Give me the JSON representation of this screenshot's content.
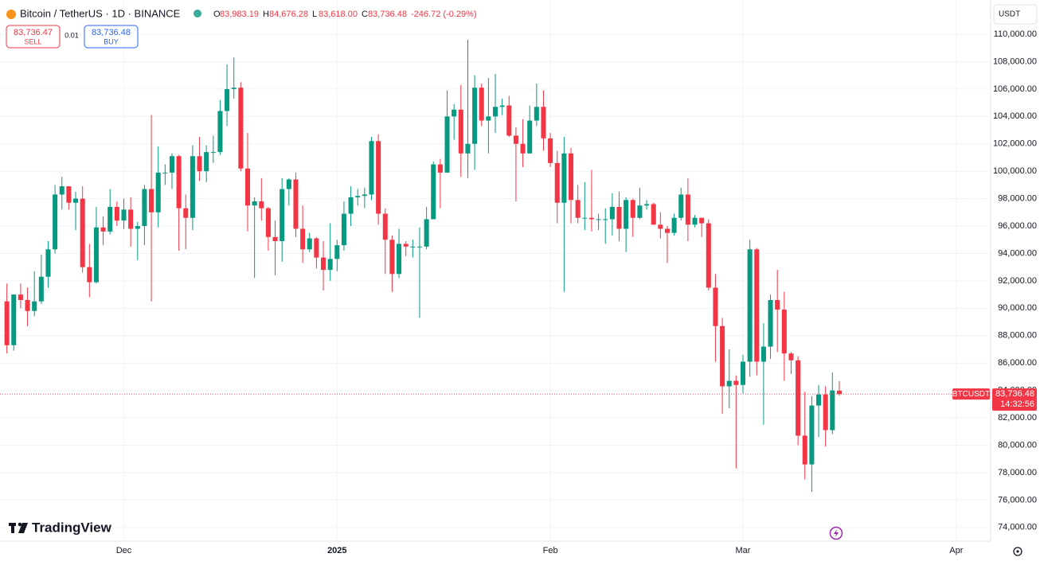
{
  "chart_data": {
    "type": "candlestick",
    "title": "Bitcoin / TetherUS · 1D · BINANCE",
    "legend": [
      {
        "label": "O",
        "value": "83,983.19"
      },
      {
        "label": "H",
        "value": "84,676.28"
      },
      {
        "label": "L",
        "value": "83,618.00"
      },
      {
        "label": "C",
        "value": "83,736.48"
      }
    ],
    "change": "-246.72 (-0.29%)",
    "sell": {
      "price": "83,736.47",
      "label": "SELL"
    },
    "spread": "0.01",
    "buy": {
      "price": "83,736.48",
      "label": "BUY"
    },
    "currency": "USDT",
    "symbol_label": "BTCUSDT",
    "last_price": {
      "value": 83736.48,
      "label": "83,736.48"
    },
    "countdown": "14:32:56",
    "brand": "TradingView",
    "up_color": "#089981",
    "down_color": "#f23645",
    "grid": true,
    "x": [
      "2024-11-14",
      "2024-11-15",
      "2024-11-16",
      "2024-11-17",
      "2024-11-18",
      "2024-11-19",
      "2024-11-20",
      "2024-11-21",
      "2024-11-22",
      "2024-11-23",
      "2024-11-24",
      "2024-11-25",
      "2024-11-26",
      "2024-11-27",
      "2024-11-28",
      "2024-11-29",
      "2024-11-30",
      "2024-12-01",
      "2024-12-02",
      "2024-12-03",
      "2024-12-04",
      "2024-12-05",
      "2024-12-06",
      "2024-12-07",
      "2024-12-08",
      "2024-12-09",
      "2024-12-10",
      "2024-12-11",
      "2024-12-12",
      "2024-12-13",
      "2024-12-14",
      "2024-12-15",
      "2024-12-16",
      "2024-12-17",
      "2024-12-18",
      "2024-12-19",
      "2024-12-20",
      "2024-12-21",
      "2024-12-22",
      "2024-12-23",
      "2024-12-24",
      "2024-12-25",
      "2024-12-26",
      "2024-12-27",
      "2024-12-28",
      "2024-12-29",
      "2024-12-30",
      "2024-12-31",
      "2025-01-01",
      "2025-01-02",
      "2025-01-03",
      "2025-01-04",
      "2025-01-05",
      "2025-01-06",
      "2025-01-07",
      "2025-01-08",
      "2025-01-09",
      "2025-01-10",
      "2025-01-11",
      "2025-01-12",
      "2025-01-13",
      "2025-01-14",
      "2025-01-15",
      "2025-01-16",
      "2025-01-17",
      "2025-01-18",
      "2025-01-19",
      "2025-01-20",
      "2025-01-21",
      "2025-01-22",
      "2025-01-23",
      "2025-01-24",
      "2025-01-25",
      "2025-01-26",
      "2025-01-27",
      "2025-01-28",
      "2025-01-29",
      "2025-01-30",
      "2025-01-31",
      "2025-02-01",
      "2025-02-02",
      "2025-02-03",
      "2025-02-04",
      "2025-02-05",
      "2025-02-06",
      "2025-02-07",
      "2025-02-08",
      "2025-02-09",
      "2025-02-10",
      "2025-02-11",
      "2025-02-12",
      "2025-02-13",
      "2025-02-14",
      "2025-02-15",
      "2025-02-16",
      "2025-02-17",
      "2025-02-18",
      "2025-02-19",
      "2025-02-20",
      "2025-02-21",
      "2025-02-22",
      "2025-02-23",
      "2025-02-24",
      "2025-02-25",
      "2025-02-26",
      "2025-02-27",
      "2025-02-28",
      "2025-03-01",
      "2025-03-02",
      "2025-03-03",
      "2025-03-04",
      "2025-03-05",
      "2025-03-06",
      "2025-03-07",
      "2025-03-08",
      "2025-03-09",
      "2025-03-10",
      "2025-03-11",
      "2025-03-12",
      "2025-03-13",
      "2025-03-14",
      "2025-03-15"
    ],
    "open": [
      90500,
      87300,
      91000,
      90600,
      89800,
      90500,
      92300,
      94300,
      98300,
      98900,
      97700,
      98000,
      93000,
      91900,
      95900,
      95600,
      97400,
      96400,
      97200,
      95800,
      96000,
      98700,
      97000,
      99900,
      99900,
      101100,
      97300,
      96600,
      101100,
      100000,
      101400,
      101400,
      104400,
      106000,
      106100,
      100200,
      97500,
      97800,
      97300,
      95200,
      94900,
      98700,
      99400,
      95800,
      94300,
      95100,
      93700,
      92800,
      93600,
      94600,
      96900,
      98100,
      98200,
      98300,
      102200,
      96900,
      95000,
      92500,
      94700,
      94500,
      94500,
      94500,
      96500,
      100500,
      99900,
      104000,
      104500,
      101300,
      102000,
      106100,
      103700,
      104000,
      104700,
      104800,
      102600,
      102000,
      101300,
      103700,
      104700,
      102400,
      100600,
      97700,
      101300,
      97900,
      96600,
      96600,
      96500,
      96500,
      96500,
      97400,
      95800,
      97900,
      96600,
      97500,
      97600,
      96100,
      95800,
      95500,
      96600,
      98300,
      96100,
      96600,
      96200,
      91500,
      88700,
      84300,
      84700,
      84400,
      86100,
      94300,
      86100,
      87200,
      90600,
      89900,
      86700,
      86200,
      80700,
      78600,
      82900,
      83700,
      81100,
      83983.19
    ],
    "high": [
      91800,
      91000,
      91800,
      91500,
      92700,
      93900,
      94900,
      99000,
      99600,
      98900,
      98500,
      98900,
      94700,
      97400,
      96700,
      98700,
      97800,
      98000,
      98100,
      96300,
      99000,
      104100,
      101800,
      100500,
      101300,
      101200,
      98300,
      101900,
      102500,
      101900,
      102600,
      105200,
      107800,
      108300,
      106500,
      102800,
      98100,
      99500,
      97400,
      96400,
      99500,
      99500,
      99900,
      97500,
      95500,
      95200,
      94900,
      96200,
      95000,
      97800,
      98900,
      98700,
      98800,
      102500,
      102700,
      97300,
      95300,
      95800,
      94900,
      95000,
      95900,
      97400,
      100700,
      100900,
      105900,
      104900,
      106300,
      109600,
      107000,
      106400,
      106800,
      107100,
      105300,
      105500,
      103200,
      103800,
      104800,
      106400,
      105900,
      102800,
      101500,
      102500,
      101700,
      99000,
      99200,
      100100,
      96900,
      97300,
      98400,
      98500,
      98100,
      98000,
      98800,
      97900,
      97700,
      97000,
      96000,
      96900,
      98800,
      99500,
      96800,
      96600,
      96500,
      92500,
      89300,
      87000,
      85100,
      86600,
      95000,
      94400,
      88900,
      91000,
      92800,
      91200,
      86800,
      86500,
      83900,
      83600,
      84400,
      84300,
      85300,
      84676.28
    ],
    "low": [
      86700,
      86900,
      90000,
      88700,
      89400,
      90300,
      91500,
      94000,
      97200,
      97200,
      95700,
      92600,
      90800,
      91800,
      94600,
      95400,
      96000,
      95800,
      94500,
      93500,
      94600,
      90500,
      95900,
      99000,
      98700,
      94200,
      94300,
      95700,
      99300,
      99200,
      100600,
      101200,
      103300,
      105300,
      100000,
      95600,
      92200,
      96400,
      94200,
      92400,
      93400,
      97500,
      95200,
      93300,
      94100,
      92900,
      91300,
      92000,
      92700,
      94200,
      96000,
      97500,
      97300,
      97900,
      96100,
      92500,
      91200,
      92200,
      93800,
      93700,
      89300,
      94300,
      96500,
      97300,
      99900,
      102300,
      99600,
      99500,
      100100,
      103300,
      101300,
      102800,
      104100,
      102500,
      97800,
      100300,
      101300,
      103300,
      101500,
      100300,
      96200,
      91200,
      96200,
      96200,
      95700,
      95600,
      95700,
      94700,
      95300,
      94900,
      94100,
      95200,
      96500,
      97200,
      96100,
      95100,
      93300,
      95300,
      96400,
      94900,
      95900,
      95200,
      91300,
      86100,
      82300,
      82700,
      78300,
      83800,
      85000,
      85100,
      81500,
      86300,
      86800,
      84700,
      85200,
      80000,
      77500,
      76600,
      80600,
      79900,
      80800,
      83618.0
    ],
    "close": [
      87300,
      91000,
      90600,
      89800,
      90500,
      92300,
      94300,
      98300,
      98900,
      97700,
      98000,
      93000,
      91900,
      95900,
      95600,
      97400,
      96400,
      97200,
      95800,
      96000,
      98700,
      97000,
      99900,
      99900,
      101100,
      97300,
      96600,
      101100,
      100000,
      101400,
      101400,
      104400,
      106000,
      106100,
      100200,
      97500,
      97800,
      97300,
      95200,
      94900,
      98700,
      99400,
      95800,
      94300,
      95100,
      93700,
      92800,
      93600,
      94600,
      96900,
      98100,
      98200,
      98300,
      102200,
      96900,
      95000,
      92500,
      94700,
      94500,
      94500,
      94500,
      96500,
      100500,
      99900,
      104000,
      104500,
      101300,
      102000,
      106100,
      103700,
      104000,
      104700,
      104800,
      102600,
      102000,
      101300,
      103700,
      104700,
      102400,
      100600,
      97700,
      101300,
      97900,
      96600,
      96600,
      96500,
      96500,
      96500,
      97400,
      95800,
      97900,
      96600,
      97500,
      97600,
      96100,
      95800,
      95500,
      96600,
      98300,
      96100,
      96600,
      96200,
      91500,
      88700,
      84300,
      84700,
      84400,
      86100,
      94300,
      86100,
      87200,
      90600,
      89900,
      86700,
      86200,
      80700,
      78600,
      82900,
      83700,
      81100,
      84000,
      83736.48
    ],
    "ylim": [
      73000,
      112500
    ],
    "yticks": [
      {
        "value": 74000,
        "label": "74,000.00"
      },
      {
        "value": 76000,
        "label": "76,000.00"
      },
      {
        "value": 78000,
        "label": "78,000.00"
      },
      {
        "value": 80000,
        "label": "80,000.00"
      },
      {
        "value": 82000,
        "label": "82,000.00"
      },
      {
        "value": 84000,
        "label": "84,000.00"
      },
      {
        "value": 86000,
        "label": "86,000.00"
      },
      {
        "value": 88000,
        "label": "88,000.00"
      },
      {
        "value": 90000,
        "label": "90,000.00"
      },
      {
        "value": 92000,
        "label": "92,000.00"
      },
      {
        "value": 94000,
        "label": "94,000.00"
      },
      {
        "value": 96000,
        "label": "96,000.00"
      },
      {
        "value": 98000,
        "label": "98,000.00"
      },
      {
        "value": 100000,
        "label": "100,000.00"
      },
      {
        "value": 102000,
        "label": "102,000.00"
      },
      {
        "value": 104000,
        "label": "104,000.00"
      },
      {
        "value": 106000,
        "label": "106,000.00"
      },
      {
        "value": 108000,
        "label": "108,000.00"
      },
      {
        "value": 110000,
        "label": "110,000.00"
      }
    ],
    "xlim": [
      "2024-11-13",
      "2025-04-06"
    ],
    "xticks": [
      {
        "value": "2024-12-01",
        "label": "Dec"
      },
      {
        "value": "2025-01-01",
        "label": "2025"
      },
      {
        "value": "2025-02-01",
        "label": "Feb"
      },
      {
        "value": "2025-03-01",
        "label": "Mar"
      },
      {
        "value": "2025-04-01",
        "label": "Apr"
      }
    ]
  }
}
